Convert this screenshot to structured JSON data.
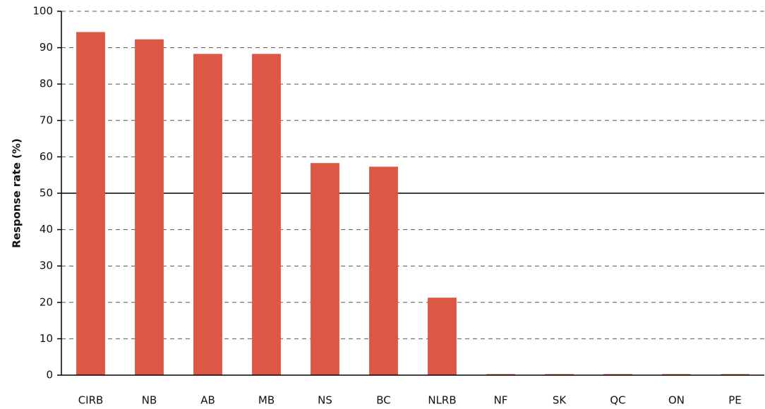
{
  "chart_data": {
    "type": "bar",
    "ylabel": "Response rate (%)",
    "categories": [
      "CIRB",
      "NB",
      "AB",
      "MB",
      "NS",
      "BC",
      "NLRB",
      "NF",
      "SK",
      "QC",
      "ON",
      "PE"
    ],
    "values": [
      94,
      92,
      88,
      88,
      58,
      57,
      21,
      0,
      0,
      0,
      0,
      0
    ],
    "color": "#dc5844",
    "ylim": [
      0,
      100
    ],
    "yticks": [
      0,
      10,
      20,
      30,
      40,
      50,
      60,
      70,
      80,
      90,
      100
    ],
    "grid": true,
    "reference_line": 50
  }
}
